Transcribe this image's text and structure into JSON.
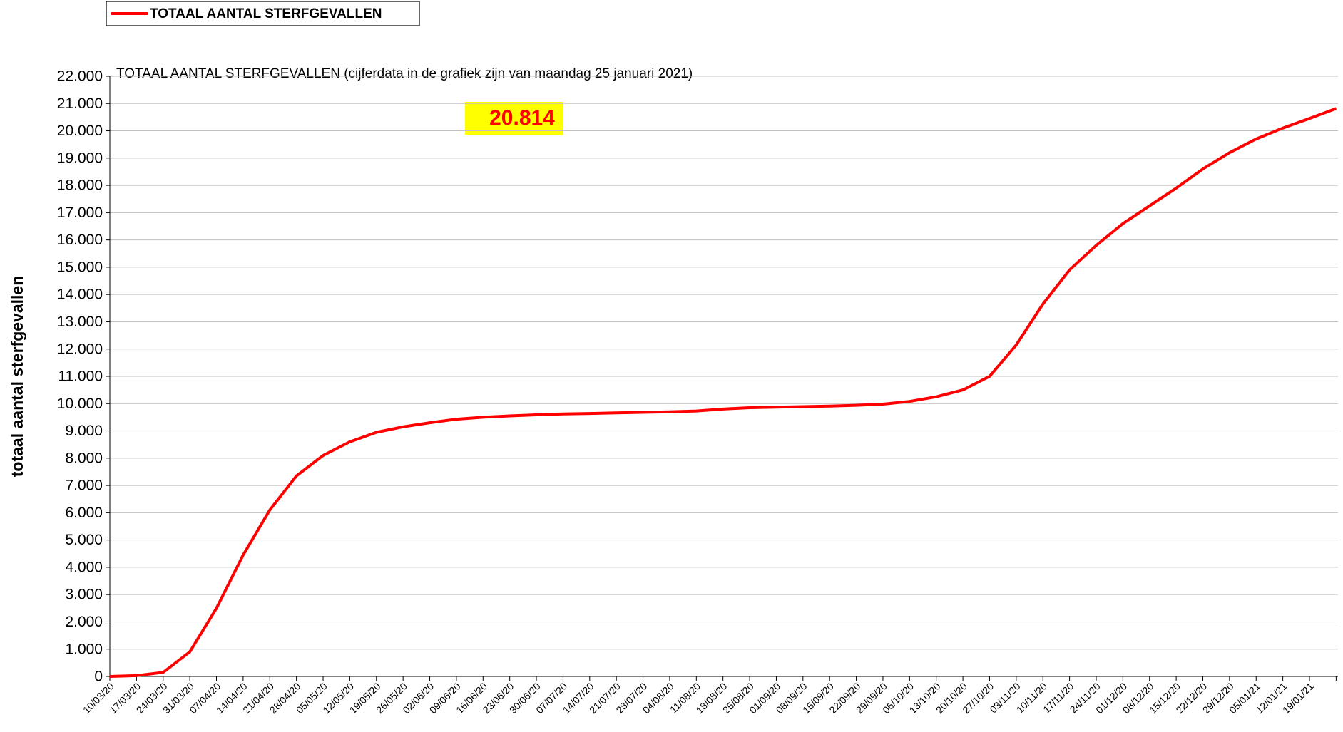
{
  "chart_data": {
    "type": "line",
    "title": "TOTAAL AANTAL STERFGEVALLEN (cijferdata in de grafiek zijn van maandag 25 januari 2021)",
    "y_label": "totaal aantal sterfgevallen",
    "annotation": "20.814",
    "categories": [
      "10/03/20",
      "17/03/20",
      "24/03/20",
      "31/03/20",
      "07/04/20",
      "14/04/20",
      "21/04/20",
      "28/04/20",
      "05/05/20",
      "12/05/20",
      "19/05/20",
      "26/05/20",
      "02/06/20",
      "09/06/20",
      "16/06/20",
      "23/06/20",
      "30/06/20",
      "07/07/20",
      "14/07/20",
      "21/07/20",
      "28/07/20",
      "04/08/20",
      "11/08/20",
      "18/08/20",
      "25/08/20",
      "01/09/20",
      "08/09/20",
      "15/09/20",
      "22/09/20",
      "29/09/20",
      "06/10/20",
      "13/10/20",
      "20/10/20",
      "27/10/20",
      "03/11/20",
      "10/11/20",
      "17/11/20",
      "24/11/20",
      "01/12/20",
      "08/12/20",
      "15/12/20",
      "22/12/20",
      "29/12/20",
      "05/01/21",
      "12/01/21",
      "19/01/21",
      null
    ],
    "series": [
      {
        "name": "TOTAAL AANTAL STERFGEVALLEN",
        "color": "#ff0000",
        "values": [
          0,
          30,
          150,
          900,
          2500,
          4450,
          6100,
          7350,
          8100,
          8600,
          8950,
          9150,
          9300,
          9430,
          9500,
          9550,
          9590,
          9620,
          9640,
          9660,
          9680,
          9700,
          9730,
          9800,
          9850,
          9870,
          9890,
          9910,
          9940,
          9980,
          10080,
          10250,
          10500,
          11000,
          12150,
          13650,
          14900,
          15800,
          16600,
          17250,
          17900,
          18600,
          19200,
          19700,
          20100,
          20450,
          20814
        ]
      }
    ],
    "ylim": [
      0,
      22000
    ],
    "yticks": [
      0,
      {
        "value": 1000,
        "label": "1.000"
      },
      {
        "value": 2000,
        "label": "2.000"
      },
      {
        "value": 3000,
        "label": "3.000"
      },
      {
        "value": 4000,
        "label": "4.000"
      },
      {
        "value": 5000,
        "label": "5.000"
      },
      {
        "value": 6000,
        "label": "6.000"
      },
      {
        "value": 7000,
        "label": "7.000"
      },
      {
        "value": 8000,
        "label": "8.000"
      },
      {
        "value": 9000,
        "label": "9.000"
      },
      {
        "value": 10000,
        "label": "10.000"
      },
      {
        "value": 11000,
        "label": "11.000"
      },
      {
        "value": 12000,
        "label": "12.000"
      },
      {
        "value": 13000,
        "label": "13.000"
      },
      {
        "value": 14000,
        "label": "14.000"
      },
      {
        "value": 15000,
        "label": "15.000"
      },
      {
        "value": 16000,
        "label": "16.000"
      },
      {
        "value": 17000,
        "label": "17.000"
      },
      {
        "value": 18000,
        "label": "18.000"
      },
      {
        "value": 19000,
        "label": "19.000"
      },
      {
        "value": 20000,
        "label": "20.000"
      },
      {
        "value": 21000,
        "label": "21.000"
      },
      {
        "value": 22000,
        "label": "22.000"
      }
    ],
    "grid": true
  }
}
